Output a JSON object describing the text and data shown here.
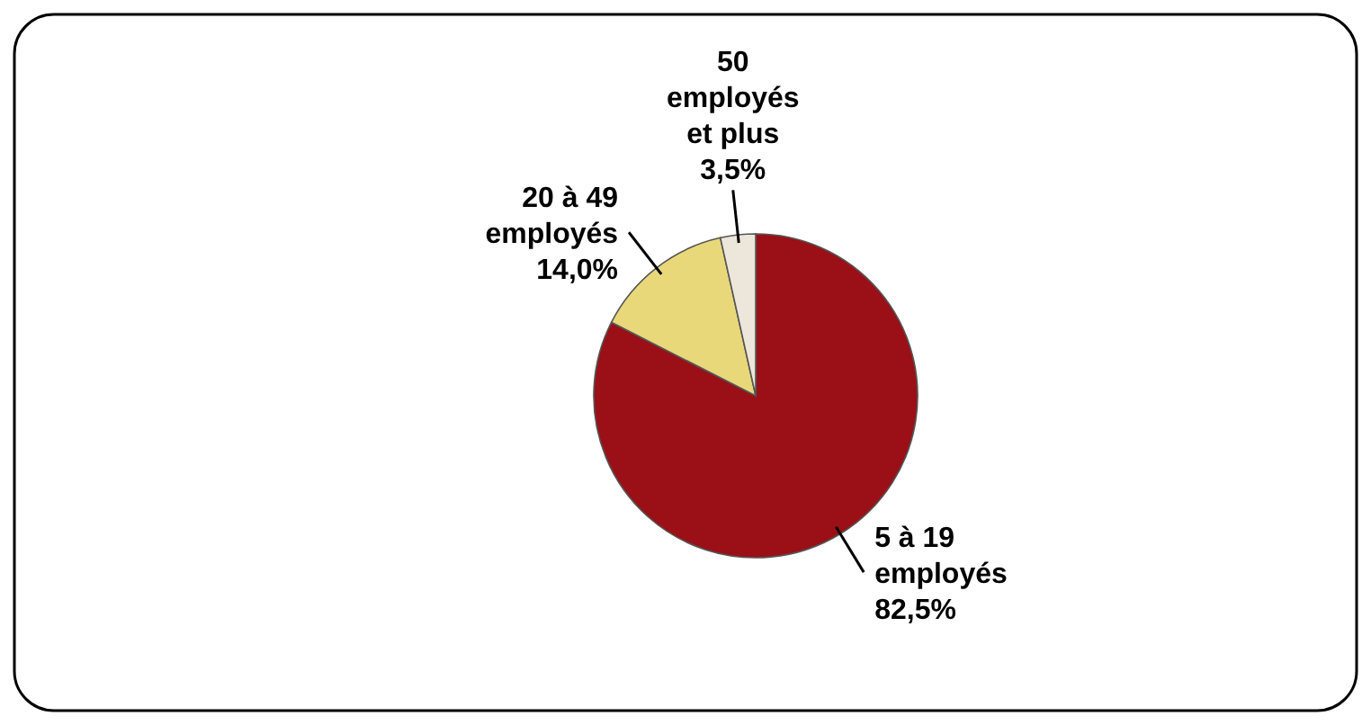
{
  "chart_data": {
    "type": "pie",
    "categories": [
      "5 à 19 employés",
      "20 à 49 employés",
      "50 employés et plus"
    ],
    "values": [
      82.5,
      14.0,
      3.5
    ],
    "colors": [
      "#9b0f16",
      "#e8d87a",
      "#ede6da"
    ],
    "value_labels": [
      "82,5%",
      "14,0%",
      "3,5%"
    ]
  }
}
